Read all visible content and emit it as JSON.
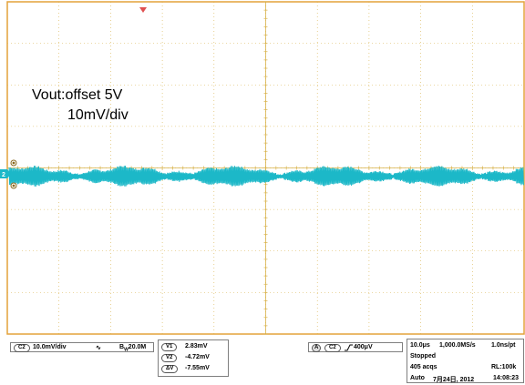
{
  "annotation": {
    "line1": "Vout:offset 5V",
    "line2": "10mV/div"
  },
  "colors": {
    "trace": "#1cb8c8",
    "grid": "#d8b24a",
    "border": "#e4a23a",
    "trigger_marker": "#e05050"
  },
  "channel": {
    "tag": "C2",
    "scale": "10.0mV/div",
    "bw": "20.0M",
    "bw_prefix": "B",
    "bw_sub": "W",
    "ground_label": "2"
  },
  "cursors": [
    {
      "tag": "V1",
      "value": "2.83mV"
    },
    {
      "tag": "V2",
      "value": "-4.72mV"
    },
    {
      "tag": "ΔV",
      "value": "-7.55mV"
    }
  ],
  "trigger": {
    "mode": "A",
    "source": "C2",
    "level": "400μV",
    "slope_icon": "rising-edge-icon"
  },
  "acquisition": {
    "timebase": "10.0μs",
    "sample_rate": "1,000.0MS/s",
    "resolution": "1.0ns/pt",
    "state": "Stopped",
    "acqs": "405 acqs",
    "record_length": "RL:100k",
    "mode": "Auto",
    "date": "7月24日, 2012",
    "time": "14:08:23"
  }
}
